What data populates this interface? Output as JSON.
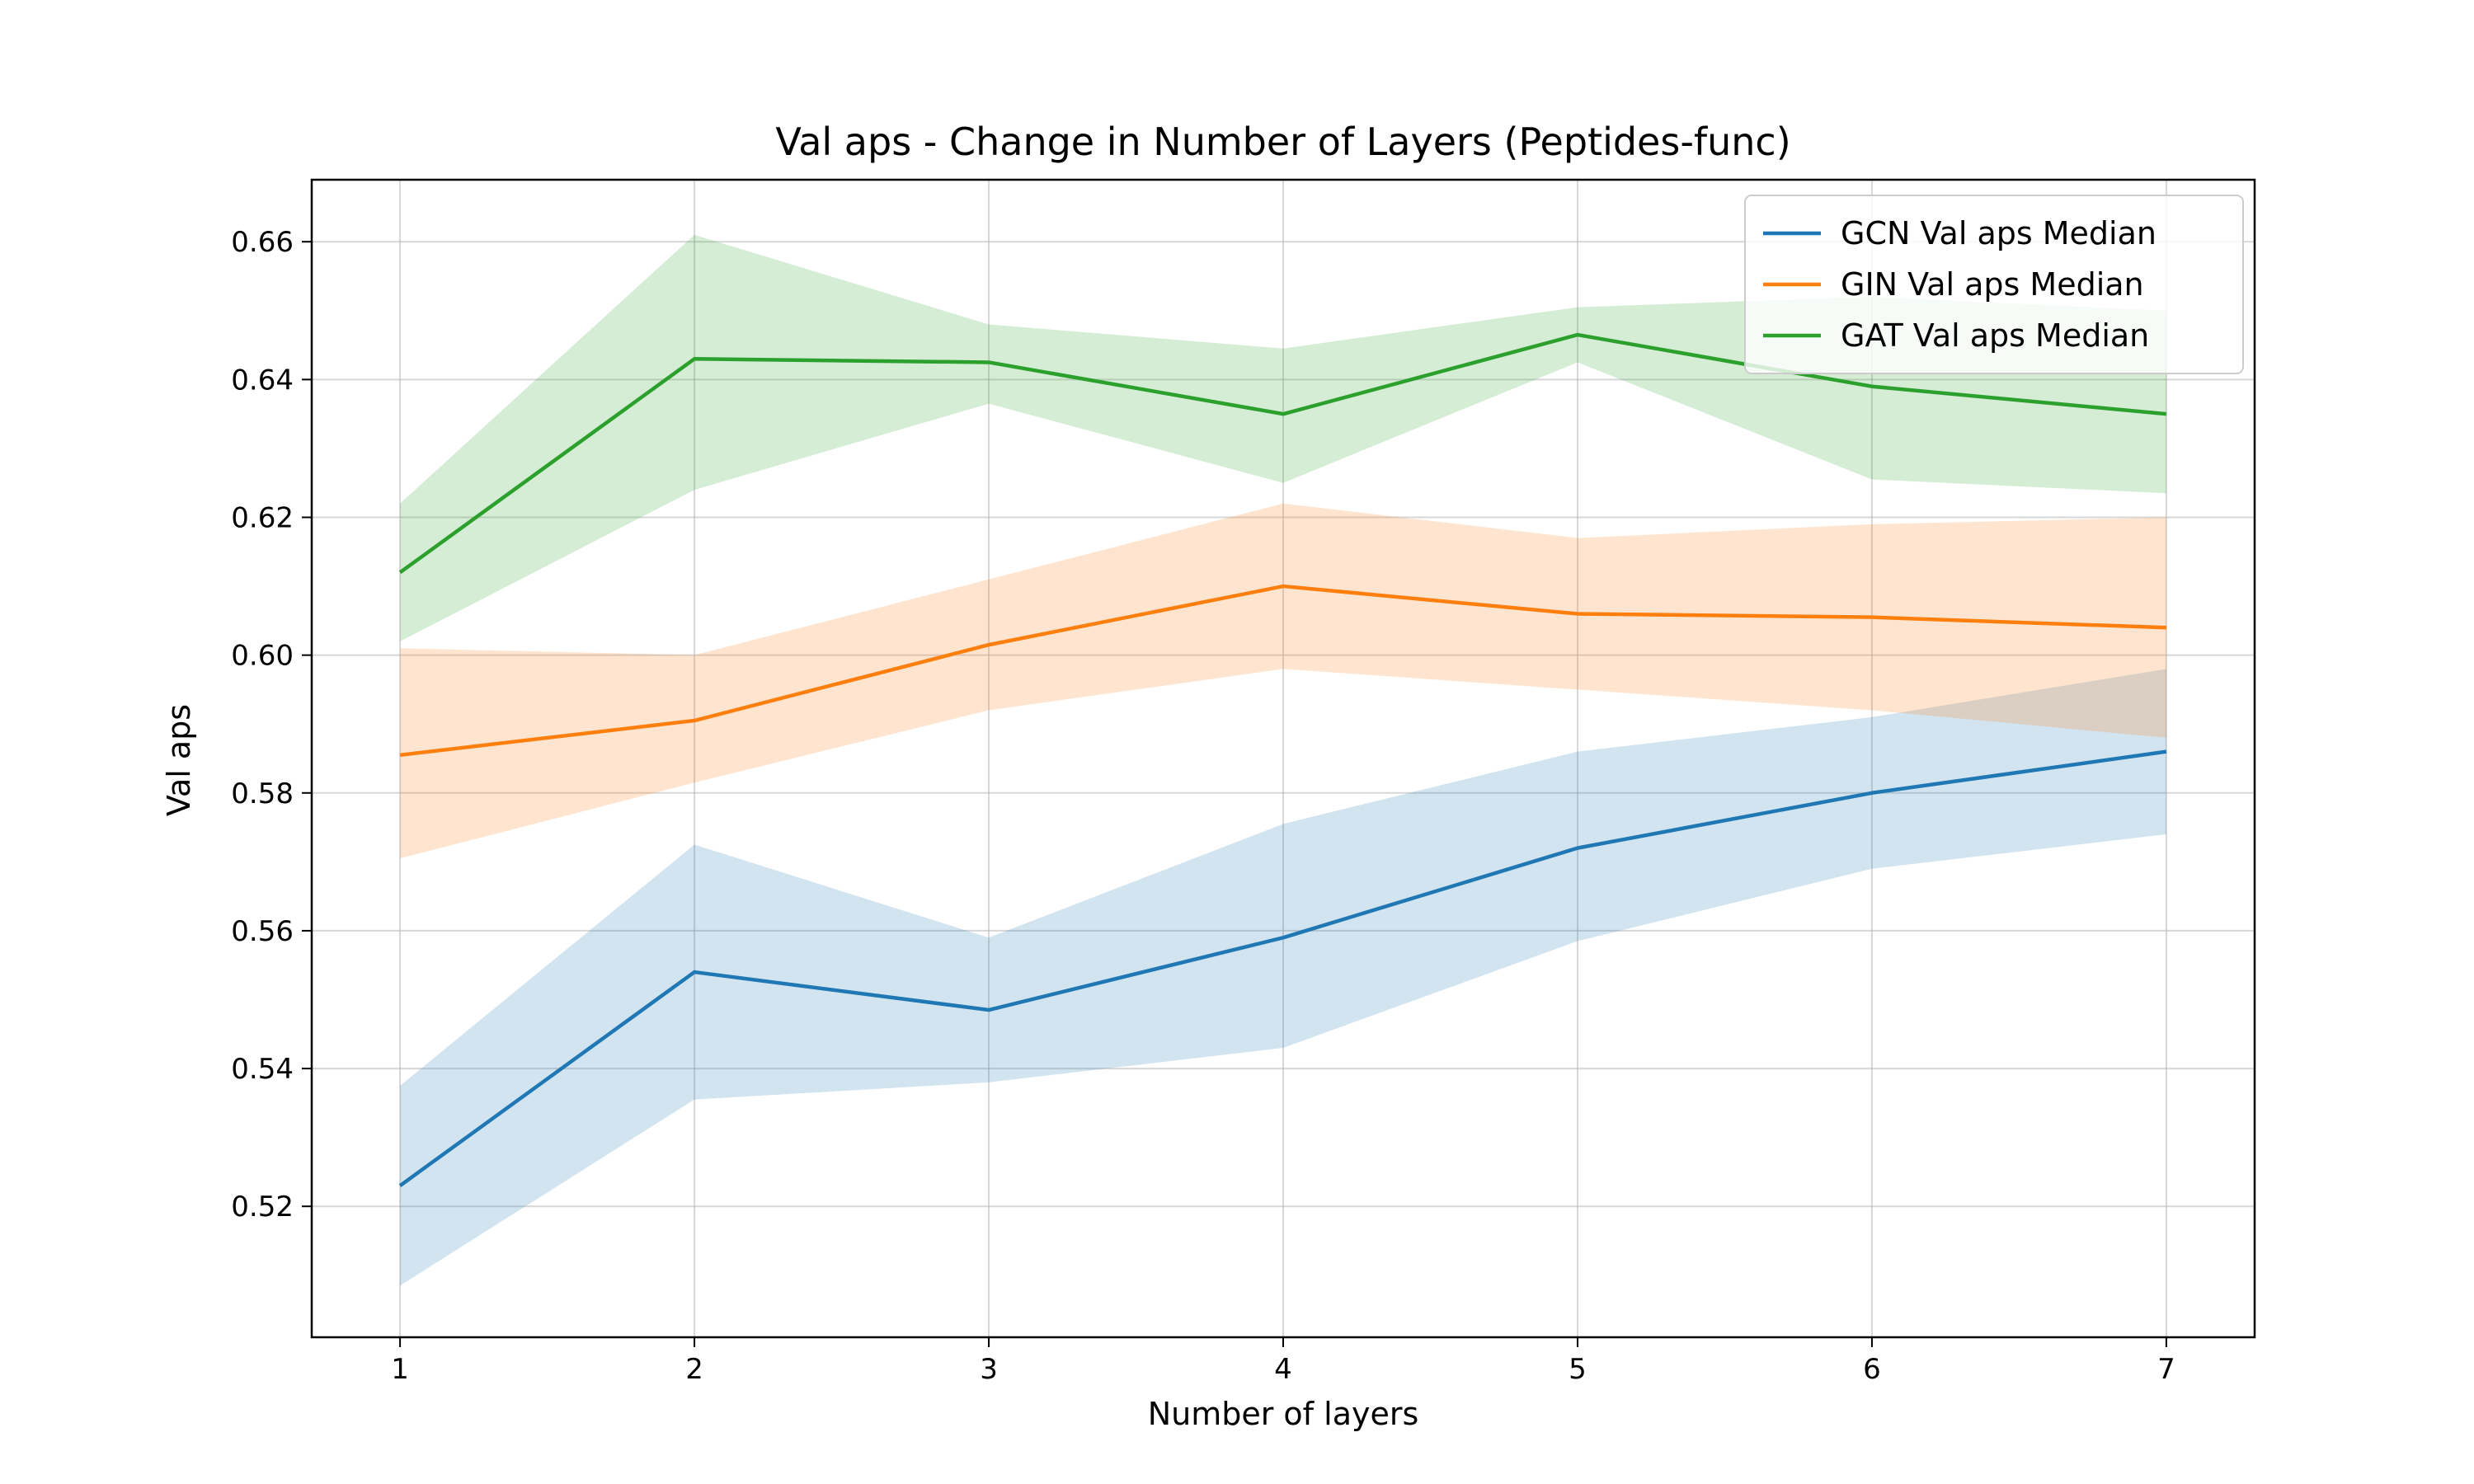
{
  "chart_data": {
    "type": "line",
    "title": "Val aps - Change in Number of Layers (Peptides-func)",
    "xlabel": "Number of layers",
    "ylabel": "Val aps",
    "x": [
      1,
      2,
      3,
      4,
      5,
      6,
      7
    ],
    "xlim": [
      0.7,
      7.3
    ],
    "ylim": [
      0.501,
      0.669
    ],
    "xticks": [
      "1",
      "2",
      "3",
      "4",
      "5",
      "6",
      "7"
    ],
    "yticks": [
      "0.52",
      "0.54",
      "0.56",
      "0.58",
      "0.60",
      "0.62",
      "0.64",
      "0.66"
    ],
    "grid": true,
    "legend_position": "top-right",
    "series": [
      {
        "name": "GCN Val aps Median",
        "color": "#1f77b4",
        "values": [
          0.523,
          0.554,
          0.5485,
          0.559,
          0.572,
          0.58,
          0.586
        ],
        "lower": [
          0.5085,
          0.5355,
          0.538,
          0.543,
          0.5585,
          0.569,
          0.574
        ],
        "upper": [
          0.5375,
          0.5725,
          0.559,
          0.5755,
          0.586,
          0.591,
          0.598
        ]
      },
      {
        "name": "GIN Val aps Median",
        "color": "#ff7f0e",
        "values": [
          0.5855,
          0.5905,
          0.6015,
          0.61,
          0.606,
          0.6055,
          0.604
        ],
        "lower": [
          0.5705,
          0.5815,
          0.592,
          0.598,
          0.595,
          0.592,
          0.588
        ],
        "upper": [
          0.601,
          0.6,
          0.611,
          0.622,
          0.617,
          0.619,
          0.62
        ]
      },
      {
        "name": "GAT Val aps Median",
        "color": "#2ca02c",
        "values": [
          0.612,
          0.643,
          0.6425,
          0.635,
          0.6465,
          0.639,
          0.635
        ],
        "lower": [
          0.602,
          0.624,
          0.6365,
          0.625,
          0.6425,
          0.6255,
          0.6235
        ],
        "upper": [
          0.622,
          0.661,
          0.648,
          0.6445,
          0.6505,
          0.652,
          0.65
        ]
      }
    ]
  }
}
